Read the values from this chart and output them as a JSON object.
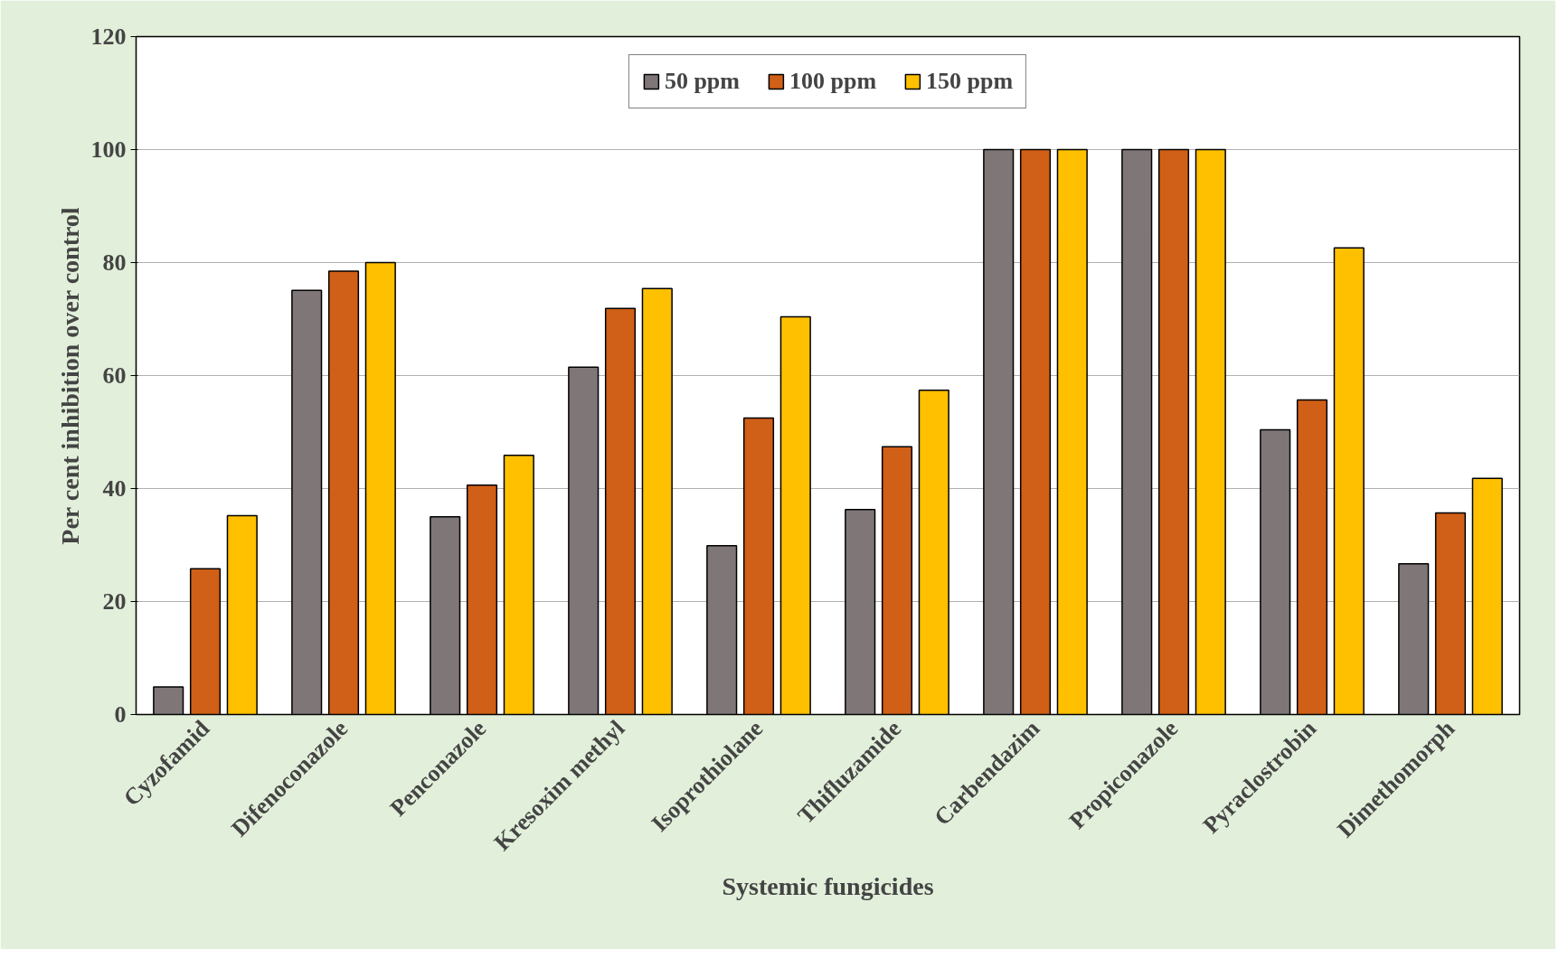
{
  "chart_data": {
    "type": "bar",
    "xlabel": "Systemic fungicides",
    "ylabel": "Per cent inhibition over control",
    "categories": [
      "Cyzofamid",
      "Difenoconazole",
      "Penconazole",
      "Kresoxim methyl",
      "Isoprothiolane",
      "Thifluzamide",
      "Carbendazim",
      "Propiconazole",
      "Pyraclostrobin",
      "Dimethomorph"
    ],
    "series": [
      {
        "name": "50 ppm",
        "color": "#7f7777",
        "values": [
          4.9,
          75.1,
          35,
          61.5,
          29.9,
          36.3,
          100,
          100,
          50.4,
          26.7
        ]
      },
      {
        "name": "100 ppm",
        "color": "#d05f17",
        "values": [
          25.8,
          78.5,
          40.6,
          71.9,
          52.5,
          47.4,
          100,
          100,
          55.7,
          35.7
        ]
      },
      {
        "name": "150 ppm",
        "color": "#ffc000",
        "values": [
          35.2,
          80,
          45.9,
          75.4,
          70.4,
          57.4,
          100,
          100,
          82.6,
          41.8
        ]
      }
    ],
    "ylim": [
      0,
      120
    ],
    "yticks": [
      0,
      20,
      40,
      60,
      80,
      100,
      120
    ],
    "grid": "y",
    "legend": "top"
  }
}
